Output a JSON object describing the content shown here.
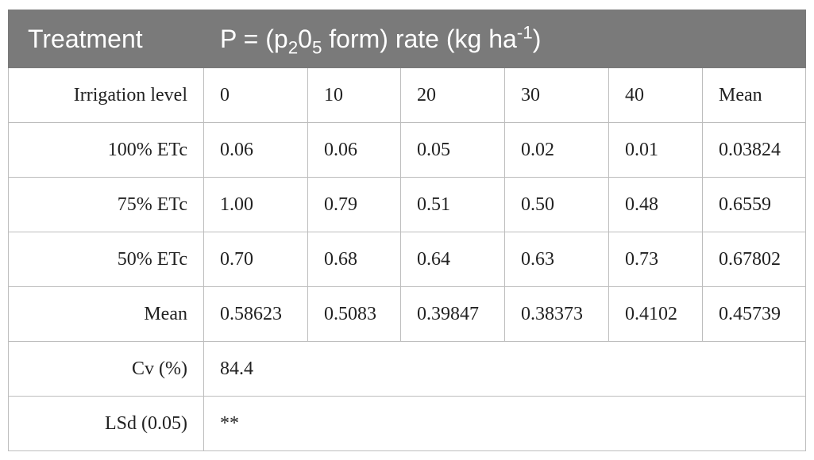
{
  "header": {
    "treatment_label": "Treatment",
    "rate_prefix": "P = (p",
    "rate_sub1": "2",
    "rate_mid": "0",
    "rate_sub2": "5",
    "rate_suffix": " form) rate (kg ha",
    "rate_sup": "-1",
    "rate_end": ")"
  },
  "table": {
    "columns_row": {
      "label": "Irrigation level",
      "cells": [
        "0",
        "10",
        "20",
        "30",
        "40",
        "Mean"
      ]
    },
    "rows": [
      {
        "label": "100% ETc",
        "cells": [
          "0.06",
          "0.06",
          "0.05",
          "0.02",
          "0.01",
          "0.03824"
        ]
      },
      {
        "label": "75% ETc",
        "cells": [
          "1.00",
          "0.79",
          "0.51",
          "0.50",
          "0.48",
          "0.6559"
        ]
      },
      {
        "label": "50% ETc",
        "cells": [
          "0.70",
          "0.68",
          "0.64",
          "0.63",
          "0.73",
          "0.67802"
        ]
      },
      {
        "label": "Mean",
        "cells": [
          "0.58623",
          "0.5083",
          "0.39847",
          "0.38373",
          "0.4102",
          "0.45739"
        ]
      }
    ],
    "cv": {
      "label": "Cv (%)",
      "value": "84.4"
    },
    "lsd": {
      "label": "LSd (0.05)",
      "value": "**"
    }
  }
}
